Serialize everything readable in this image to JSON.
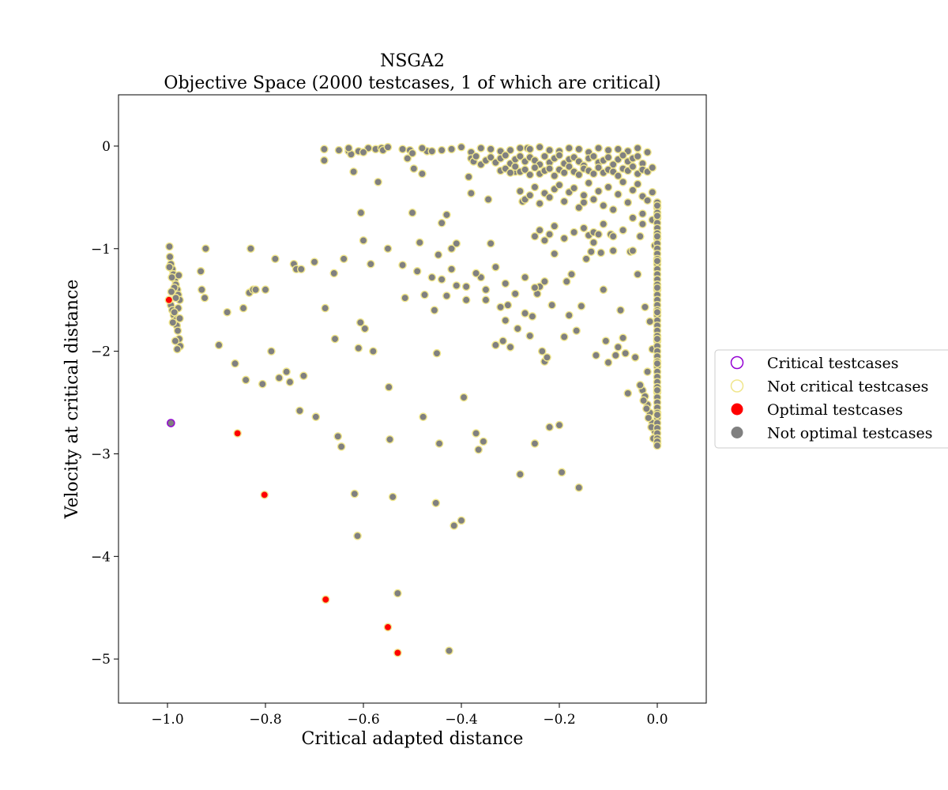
{
  "chart_data": {
    "type": "scatter",
    "title": "NSGA2",
    "subtitle": "Objective Space (2000 testcases, 1 of which are critical)",
    "xlabel": "Critical adapted distance",
    "ylabel": "Velocity at critical distance",
    "xlim": [
      -1.1,
      0.1
    ],
    "ylim": [
      -5.43,
      0.5
    ],
    "xticks": [
      -1.0,
      -0.8,
      -0.6,
      -0.4,
      -0.2,
      0.0
    ],
    "xtick_labels": [
      "−1.0",
      "−0.8",
      "−0.6",
      "−0.4",
      "−0.2",
      "0.0"
    ],
    "yticks": [
      0,
      -1,
      -2,
      -3,
      -4,
      -5
    ],
    "ytick_labels": [
      "0",
      "−1",
      "−2",
      "−3",
      "−4",
      "−5"
    ],
    "grid": false,
    "legend_placement": "center-right outside",
    "colors": {
      "not_optimal_fill": "#808080",
      "not_critical_edge": "#f0e68c",
      "optimal_fill": "#ff0000",
      "critical_edge": "#9400d3"
    },
    "legend": [
      {
        "label": "Critical testcases",
        "marker": "open-circle",
        "color": "#9400d3"
      },
      {
        "label": "Not critical testcases",
        "marker": "open-circle",
        "color": "#f0e68c"
      },
      {
        "label": "Optimal testcases",
        "marker": "filled-circle",
        "color": "#ff0000"
      },
      {
        "label": "Not optimal testcases",
        "marker": "filled-circle",
        "color": "#808080"
      }
    ],
    "series": [
      {
        "name": "Optimal testcases",
        "x": [
          -0.997,
          -0.857,
          -0.802,
          -0.677,
          -0.55,
          -0.53
        ],
        "y": [
          -1.5,
          -2.8,
          -3.4,
          -4.42,
          -4.69,
          -4.94
        ]
      },
      {
        "name": "Critical testcases",
        "x": [
          -0.993
        ],
        "y": [
          -2.7
        ]
      },
      {
        "name": "Not optimal testcases",
        "x": [
          -0.996,
          -0.995,
          -0.993,
          -0.99,
          -0.988,
          -0.985,
          -0.983,
          -0.98,
          -0.978,
          -0.975,
          -0.993,
          -0.99,
          -0.987,
          -0.984,
          -0.981,
          -0.979,
          -0.976,
          -0.974,
          -0.991,
          -0.986,
          -0.983,
          -0.978,
          -0.975,
          -0.996,
          -0.989,
          -0.984,
          -0.98,
          -0.977,
          -0.992,
          -0.986,
          -0.932,
          -0.93,
          -0.924,
          -0.922,
          -0.895,
          -0.878,
          -0.862,
          -0.845,
          -0.84,
          -0.833,
          -0.83,
          -0.825,
          -0.82,
          -0.806,
          -0.8,
          -0.788,
          -0.78,
          -0.772,
          -0.757,
          -0.75,
          -0.742,
          -0.737,
          -0.73,
          -0.727,
          -0.722,
          -0.7,
          -0.697,
          -0.68,
          -0.678,
          -0.66,
          -0.658,
          -0.652,
          -0.645,
          -0.64,
          -0.63,
          -0.625,
          -0.62,
          -0.618,
          -0.612,
          -0.61,
          -0.606,
          -0.605,
          -0.6,
          -0.597,
          -0.59,
          -0.585,
          -0.58,
          -0.575,
          -0.57,
          -0.563,
          -0.55,
          -0.548,
          -0.546,
          -0.54,
          -0.53,
          -0.52,
          -0.515,
          -0.51,
          -0.505,
          -0.5,
          -0.497,
          -0.49,
          -0.485,
          -0.48,
          -0.478,
          -0.475,
          -0.47,
          -0.46,
          -0.455,
          -0.452,
          -0.45,
          -0.447,
          -0.445,
          -0.44,
          -0.43,
          -0.425,
          -0.42,
          -0.415,
          -0.41,
          -0.4,
          -0.395,
          -0.39,
          -0.385,
          -0.38,
          -0.37,
          -0.365,
          -0.36,
          -0.355,
          -0.35,
          -0.345,
          -0.34,
          -0.33,
          -0.32,
          -0.315,
          -0.31,
          -0.305,
          -0.3,
          -0.29,
          -0.285,
          -0.28,
          -0.275,
          -0.27,
          -0.265,
          -0.26,
          -0.255,
          -0.25,
          -0.245,
          -0.24,
          -0.235,
          -0.23,
          -0.225,
          -0.22,
          -0.215,
          -0.21,
          -0.2,
          -0.195,
          -0.19,
          -0.185,
          -0.18,
          -0.175,
          -0.17,
          -0.165,
          -0.16,
          -0.155,
          -0.15,
          -0.145,
          -0.14,
          -0.135,
          -0.13,
          -0.125,
          -0.12,
          -0.115,
          -0.11,
          -0.105,
          -0.1,
          -0.095,
          -0.09,
          -0.085,
          -0.08,
          -0.075,
          -0.07,
          -0.065,
          -0.06,
          -0.055,
          -0.05,
          -0.045,
          -0.04,
          -0.035,
          -0.03,
          -0.025,
          -0.02,
          -0.015,
          -0.01,
          -0.005,
          -0.68,
          -0.65,
          -0.63,
          -0.61,
          -0.6,
          -0.56,
          -0.55,
          -0.52,
          -0.5,
          -0.48,
          -0.46,
          -0.44,
          -0.42,
          -0.4,
          -0.38,
          -0.36,
          -0.34,
          -0.32,
          -0.3,
          -0.28,
          -0.26,
          -0.24,
          -0.22,
          -0.2,
          -0.18,
          -0.16,
          -0.14,
          -0.12,
          -0.1,
          -0.08,
          -0.06,
          -0.04,
          -0.02,
          -0.38,
          -0.375,
          -0.37,
          -0.36,
          -0.35,
          -0.34,
          -0.33,
          -0.32,
          -0.31,
          -0.3,
          -0.29,
          -0.28,
          -0.27,
          -0.26,
          -0.25,
          -0.24,
          -0.23,
          -0.22,
          -0.21,
          -0.2,
          -0.19,
          -0.18,
          -0.17,
          -0.16,
          -0.15,
          -0.14,
          -0.13,
          -0.12,
          -0.11,
          -0.1,
          -0.09,
          -0.08,
          -0.07,
          -0.06,
          -0.05,
          -0.04,
          -0.03,
          -0.32,
          -0.31,
          -0.3,
          -0.29,
          -0.28,
          -0.27,
          -0.26,
          -0.25,
          -0.24,
          -0.23,
          -0.22,
          -0.21,
          -0.2,
          -0.19,
          -0.18,
          -0.17,
          -0.16,
          -0.15,
          -0.14,
          -0.13,
          -0.12,
          -0.11,
          -0.1,
          -0.09,
          -0.08,
          -0.07,
          -0.06,
          -0.05,
          -0.04,
          -0.03,
          -0.02,
          -0.01,
          -0.28,
          -0.27,
          -0.26,
          -0.25,
          -0.24,
          -0.23,
          -0.22,
          -0.21,
          -0.2,
          -0.19,
          -0.18,
          -0.17,
          -0.16,
          -0.15,
          -0.14,
          -0.13,
          -0.12,
          -0.11,
          -0.1,
          -0.09,
          -0.08,
          -0.07,
          -0.06,
          -0.05,
          -0.04,
          -0.03,
          -0.02,
          -0.01,
          -0.25,
          -0.24,
          -0.23,
          -0.22,
          -0.21,
          -0.19,
          -0.17,
          -0.15,
          -0.13,
          -0.11,
          -0.09,
          -0.07,
          -0.05,
          -0.03,
          -0.01,
          -0.44,
          -0.43,
          -0.42,
          -0.41,
          -0.39,
          -0.37,
          -0.35,
          -0.33,
          -0.31,
          -0.29,
          -0.27,
          -0.25,
          -0.23,
          -0.03,
          -0.025,
          -0.02,
          -0.015,
          -0.01,
          -0.005,
          -0.035,
          -0.028,
          -0.022,
          -0.018,
          -0.012,
          -0.008
        ],
        "y": [
          -0.98,
          -1.08,
          -1.15,
          -1.2,
          -1.25,
          -1.3,
          -1.35,
          -1.4,
          -1.45,
          -1.5,
          -1.55,
          -1.6,
          -1.65,
          -1.7,
          -1.75,
          -1.8,
          -1.88,
          -1.95,
          -1.28,
          -1.38,
          -1.48,
          -1.58,
          -1.68,
          -1.18,
          -1.72,
          -1.9,
          -1.98,
          -1.26,
          -1.42,
          -1.62,
          -1.22,
          -1.4,
          -1.48,
          -1.0,
          -1.94,
          -1.62,
          -2.12,
          -1.58,
          -2.28,
          -1.43,
          -1.0,
          -1.4,
          -1.4,
          -2.32,
          -1.4,
          -2.0,
          -1.1,
          -2.26,
          -2.2,
          -2.3,
          -1.15,
          -1.2,
          -2.58,
          -1.2,
          -2.24,
          -1.13,
          -2.64,
          -0.14,
          -1.58,
          -1.24,
          -1.88,
          -2.83,
          -2.93,
          -1.1,
          -0.05,
          -0.08,
          -0.25,
          -3.39,
          -3.8,
          -1.97,
          -1.72,
          -0.65,
          -0.92,
          -1.78,
          -0.02,
          -1.15,
          -2.0,
          -0.03,
          -0.35,
          -0.02,
          -1.0,
          -2.35,
          -2.86,
          -3.42,
          -4.36,
          -1.16,
          -1.48,
          -0.12,
          -0.04,
          -0.65,
          -0.22,
          -1.22,
          -0.94,
          -0.27,
          -2.64,
          -1.45,
          -0.05,
          -1.28,
          -1.6,
          -3.48,
          -2.02,
          -1.06,
          -2.9,
          -0.75,
          -0.67,
          -4.92,
          -1.0,
          -3.7,
          -0.95,
          -3.65,
          -2.45,
          -1.37,
          -0.3,
          -0.46,
          -2.8,
          -2.96,
          -1.28,
          -2.88,
          -1.5,
          -0.52,
          -0.95,
          -1.94,
          -1.57,
          -1.9,
          -1.7,
          -1.55,
          -1.96,
          -0.25,
          -1.78,
          -3.2,
          -0.54,
          -1.63,
          -0.02,
          -1.85,
          -1.66,
          -2.9,
          -1.44,
          -1.37,
          -2.0,
          -2.1,
          -2.06,
          -2.74,
          -1.55,
          -1.05,
          -2.72,
          -3.18,
          -1.86,
          -1.32,
          -1.65,
          -1.25,
          -0.25,
          -1.8,
          -3.33,
          -1.56,
          -0.55,
          -1.1,
          -0.87,
          -1.03,
          -0.84,
          -2.04,
          -0.86,
          -1.04,
          -1.4,
          -1.9,
          -2.11,
          -0.86,
          -1.02,
          -2.04,
          -1.96,
          -1.6,
          -1.87,
          -2.02,
          -2.41,
          -1.03,
          -1.02,
          -2.06,
          -1.25,
          -0.88,
          -0.76,
          -1.57,
          -2.2,
          -1.71,
          -1.98,
          -0.97,
          -0.03,
          -0.04,
          -0.02,
          -0.05,
          -0.06,
          -0.04,
          -0.01,
          -0.03,
          -0.07,
          -0.02,
          -0.05,
          -0.04,
          -0.03,
          -0.01,
          -0.06,
          -0.02,
          -0.03,
          -0.05,
          -0.04,
          -0.02,
          -0.03,
          -0.01,
          -0.04,
          -0.05,
          -0.02,
          -0.03,
          -0.06,
          -0.02,
          -0.04,
          -0.03,
          -0.05,
          -0.02,
          -0.06,
          -0.12,
          -0.15,
          -0.1,
          -0.18,
          -0.14,
          -0.11,
          -0.16,
          -0.12,
          -0.09,
          -0.17,
          -0.13,
          -0.1,
          -0.15,
          -0.11,
          -0.14,
          -0.18,
          -0.1,
          -0.16,
          -0.12,
          -0.09,
          -0.17,
          -0.13,
          -0.11,
          -0.15,
          -0.19,
          -0.12,
          -0.1,
          -0.16,
          -0.14,
          -0.11,
          -0.18,
          -0.13,
          -0.09,
          -0.15,
          -0.12,
          -0.1,
          -0.17,
          -0.24,
          -0.22,
          -0.26,
          -0.2,
          -0.25,
          -0.23,
          -0.28,
          -0.21,
          -0.27,
          -0.24,
          -0.22,
          -0.29,
          -0.23,
          -0.26,
          -0.2,
          -0.25,
          -0.28,
          -0.22,
          -0.24,
          -0.27,
          -0.21,
          -0.26,
          -0.23,
          -0.25,
          -0.29,
          -0.22,
          -0.24,
          -0.2,
          -0.27,
          -0.23,
          -0.25,
          -0.21,
          -0.44,
          -0.52,
          -0.48,
          -0.4,
          -0.56,
          -0.46,
          -0.5,
          -0.42,
          -0.38,
          -0.54,
          -0.45,
          -0.41,
          -0.6,
          -0.48,
          -0.36,
          -0.52,
          -0.44,
          -0.58,
          -0.4,
          -0.62,
          -0.47,
          -0.35,
          -0.55,
          -0.43,
          -0.37,
          -0.49,
          -0.53,
          -0.45,
          -0.88,
          -0.82,
          -0.92,
          -0.86,
          -0.78,
          -0.9,
          -0.84,
          -0.8,
          -0.94,
          -0.76,
          -0.88,
          -0.82,
          -0.7,
          -0.66,
          -0.72,
          -1.3,
          -1.46,
          -1.2,
          -1.36,
          -1.5,
          -1.24,
          -1.4,
          -1.18,
          -1.34,
          -1.44,
          -1.28,
          -1.38,
          -1.32,
          -2.38,
          -2.44,
          -2.52,
          -2.6,
          -2.7,
          -2.78,
          -2.33,
          -2.48,
          -2.56,
          -2.65,
          -2.74,
          -2.85
        ]
      },
      {
        "name": "Not optimal testcases (x = 0.0)",
        "x": [
          0.0,
          0.0,
          0.0,
          0.0,
          0.0,
          0.0,
          0.0,
          0.0,
          0.0,
          0.0,
          0.0,
          0.0,
          0.0,
          0.0,
          0.0,
          0.0,
          0.0,
          0.0,
          0.0,
          0.0,
          0.0,
          0.0,
          0.0,
          0.0,
          0.0,
          0.0,
          0.0,
          0.0,
          0.0,
          0.0,
          0.0,
          0.0,
          0.0,
          0.0,
          0.0,
          0.0,
          0.0,
          0.0,
          0.0,
          0.0,
          0.0,
          0.0,
          0.0,
          0.0,
          0.0,
          0.0,
          0.0,
          0.0,
          0.0,
          0.0,
          0.0,
          0.0,
          0.0,
          0.0,
          0.0,
          0.0,
          0.0,
          0.0,
          0.0,
          0.0
        ],
        "y": [
          -0.55,
          -0.6,
          -0.65,
          -0.7,
          -0.75,
          -0.8,
          -0.85,
          -0.9,
          -0.95,
          -1.0,
          -1.05,
          -1.1,
          -1.15,
          -1.2,
          -1.25,
          -1.3,
          -1.35,
          -1.4,
          -1.45,
          -1.5,
          -1.55,
          -1.6,
          -1.65,
          -1.7,
          -1.75,
          -1.8,
          -1.85,
          -1.9,
          -1.95,
          -2.0,
          -2.05,
          -2.1,
          -2.15,
          -2.2,
          -2.25,
          -2.3,
          -2.35,
          -2.4,
          -2.45,
          -2.5,
          -2.55,
          -2.6,
          -2.65,
          -2.7,
          -2.75,
          -2.8,
          -2.85,
          -2.9,
          -0.58,
          -0.88,
          -1.12,
          -1.38,
          -1.62,
          -1.88,
          -2.12,
          -2.38,
          -2.62,
          -2.88,
          -2.92,
          -0.68
        ]
      }
    ]
  }
}
